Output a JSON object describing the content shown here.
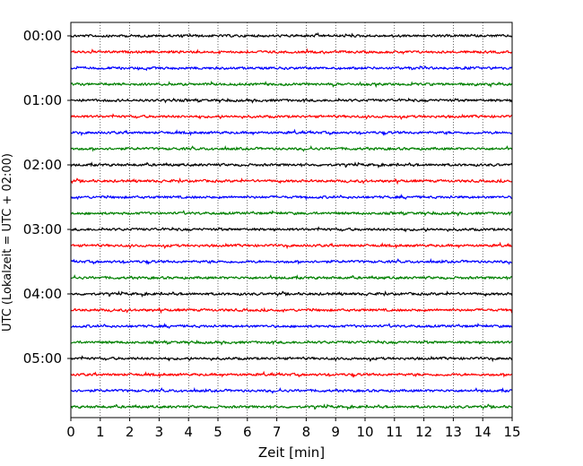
{
  "chart_data": {
    "type": "line",
    "title": "",
    "xlabel": "Zeit  [min]",
    "ylabel": "UTC (Lokalzeit = UTC + 02:00)",
    "xlim": [
      0,
      15
    ],
    "x_ticks": [
      "0",
      "1",
      "2",
      "3",
      "4",
      "5",
      "6",
      "7",
      "8",
      "9",
      "10",
      "11",
      "12",
      "13",
      "14",
      "15"
    ],
    "y_tick_labels": [
      "00:00",
      "01:00",
      "02:00",
      "03:00",
      "04:00",
      "05:00"
    ],
    "grid": "vertical dotted at each minute",
    "trace_interval_minutes": 15,
    "traces": [
      {
        "start": "00:00",
        "color": "#000000"
      },
      {
        "start": "00:15",
        "color": "#ff0000"
      },
      {
        "start": "00:30",
        "color": "#0000ff"
      },
      {
        "start": "00:45",
        "color": "#008000"
      },
      {
        "start": "01:00",
        "color": "#000000"
      },
      {
        "start": "01:15",
        "color": "#ff0000"
      },
      {
        "start": "01:30",
        "color": "#0000ff"
      },
      {
        "start": "01:45",
        "color": "#008000"
      },
      {
        "start": "02:00",
        "color": "#000000"
      },
      {
        "start": "02:15",
        "color": "#ff0000"
      },
      {
        "start": "02:30",
        "color": "#0000ff"
      },
      {
        "start": "02:45",
        "color": "#008000"
      },
      {
        "start": "03:00",
        "color": "#000000"
      },
      {
        "start": "03:15",
        "color": "#ff0000"
      },
      {
        "start": "03:30",
        "color": "#0000ff"
      },
      {
        "start": "03:45",
        "color": "#008000"
      },
      {
        "start": "04:00",
        "color": "#000000"
      },
      {
        "start": "04:15",
        "color": "#ff0000"
      },
      {
        "start": "04:30",
        "color": "#0000ff"
      },
      {
        "start": "04:45",
        "color": "#008000"
      },
      {
        "start": "05:00",
        "color": "#000000"
      },
      {
        "start": "05:15",
        "color": "#ff0000"
      },
      {
        "start": "05:30",
        "color": "#0000ff"
      },
      {
        "start": "05:45",
        "color": "#008000"
      }
    ]
  }
}
